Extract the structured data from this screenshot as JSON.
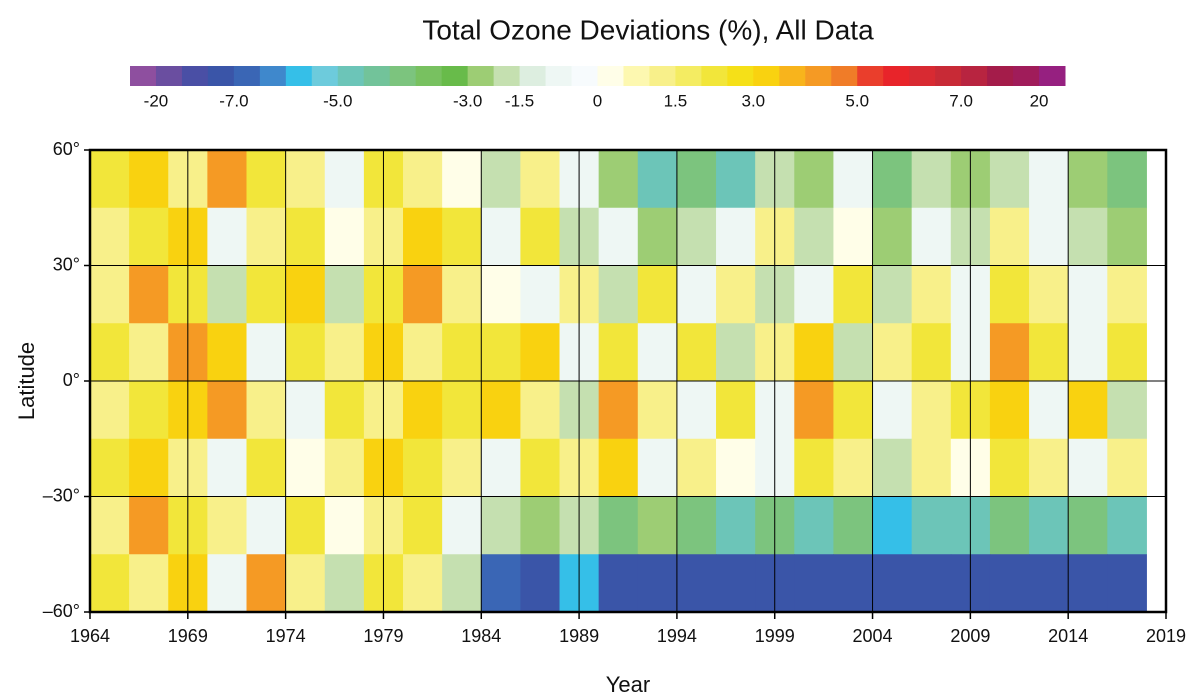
{
  "chart_data": {
    "type": "heatmap",
    "title": "Total Ozone Deviations (%), All Data",
    "x_label": "Year",
    "y_label": "Latitude",
    "x": [
      1965,
      1967,
      1969,
      1971,
      1973,
      1975,
      1977,
      1979,
      1981,
      1983,
      1985,
      1987,
      1989,
      1991,
      1993,
      1995,
      1997,
      1999,
      2001,
      2003,
      2005,
      2007,
      2009,
      2011,
      2013,
      2015,
      2017
    ],
    "y": [
      52.5,
      37.5,
      22.5,
      7.5,
      -7.5,
      -22.5,
      -37.5,
      -52.5
    ],
    "z": [
      [
        2,
        3,
        1,
        4,
        2,
        1,
        -1,
        2,
        1,
        0,
        -2,
        1,
        -1,
        -3,
        -5,
        -4,
        -5,
        -2,
        -3,
        -1,
        -4,
        -2,
        -3,
        -2,
        -1,
        -3,
        -4
      ],
      [
        1,
        2,
        3,
        -1,
        1,
        2,
        0,
        1,
        3,
        2,
        -1,
        2,
        -2,
        -1,
        -3,
        -2,
        -1,
        1,
        -2,
        0,
        -3,
        -1,
        -2,
        1,
        -1,
        -2,
        -3
      ],
      [
        1,
        4,
        2,
        -2,
        2,
        3,
        -2,
        2,
        4,
        1,
        0,
        -1,
        1,
        -2,
        2,
        -1,
        1,
        -2,
        -1,
        2,
        -2,
        1,
        -1,
        2,
        1,
        -1,
        1
      ],
      [
        2,
        1,
        4,
        3,
        -1,
        2,
        1,
        3,
        1,
        2,
        2,
        3,
        -1,
        2,
        -1,
        2,
        -2,
        1,
        3,
        -2,
        1,
        2,
        -1,
        4,
        2,
        -1,
        2
      ],
      [
        1,
        2,
        3,
        4,
        1,
        -1,
        2,
        1,
        3,
        2,
        3,
        1,
        -2,
        4,
        1,
        -1,
        2,
        -1,
        4,
        2,
        -1,
        1,
        2,
        3,
        -1,
        3,
        -2
      ],
      [
        2,
        3,
        1,
        -1,
        2,
        0,
        1,
        3,
        2,
        1,
        -1,
        2,
        1,
        3,
        -1,
        1,
        0,
        -1,
        2,
        1,
        -2,
        1,
        0,
        2,
        1,
        -1,
        1
      ],
      [
        1,
        4,
        2,
        1,
        -1,
        2,
        0,
        1,
        2,
        -1,
        -2,
        -3,
        -2,
        -4,
        -3,
        -4,
        -5,
        -4,
        -5,
        -4,
        -6,
        -5,
        -5,
        -4,
        -5,
        -4,
        -5
      ],
      [
        2,
        1,
        3,
        -1,
        4,
        1,
        -2,
        2,
        1,
        -2,
        -7,
        -8,
        -6,
        -9,
        -8,
        -9,
        -8,
        -10,
        -9,
        -8,
        -10,
        -9,
        -8,
        -9,
        -10,
        -9,
        -8
      ]
    ],
    "xlim": [
      1964,
      2019
    ],
    "xticks": [
      1964,
      1969,
      1974,
      1979,
      1984,
      1989,
      1994,
      1999,
      2004,
      2009,
      2014,
      2019
    ],
    "ylim": [
      -60,
      60
    ],
    "yticks": [
      {
        "value": -60,
        "label": "–60°"
      },
      {
        "value": -30,
        "label": "–30°"
      },
      {
        "value": 0,
        "label": "0°"
      },
      {
        "value": 30,
        "label": "30°"
      },
      {
        "value": 60,
        "label": "60°"
      }
    ],
    "grid": true,
    "colorbar": {
      "bounds": [
        -25,
        -20,
        -15,
        -10,
        -7,
        -6.5,
        -6,
        -5.5,
        -5,
        -4.6,
        -4.2,
        -3.8,
        -3.4,
        -3,
        -2.25,
        -1.5,
        -1,
        -0.5,
        0,
        0.5,
        1,
        1.5,
        2,
        2.5,
        3,
        3.5,
        4,
        4.5,
        5,
        5.5,
        6,
        6.5,
        7,
        10,
        15,
        20,
        25
      ],
      "colors": [
        "#8e4f9f",
        "#6a4ea0",
        "#4a4fa5",
        "#3a55a8",
        "#3a66b5",
        "#3f88cc",
        "#35bfe8",
        "#6dcbdc",
        "#6cc5b8",
        "#72c39a",
        "#7cc47e",
        "#78c160",
        "#68bb4a",
        "#9dcd74",
        "#c5e0b0",
        "#ddeee0",
        "#eef7f4",
        "#f7fbfd",
        "#fffee8",
        "#fdf8b0",
        "#f8f08a",
        "#f4ec62",
        "#f2e63a",
        "#f5e018",
        "#f9d210",
        "#f8b41c",
        "#f59a24",
        "#f07c28",
        "#ea3e2c",
        "#e8242a",
        "#d82a32",
        "#c82a36",
        "#b82440",
        "#a41c4a",
        "#a01c5a",
        "#962080"
      ],
      "ticks": [
        {
          "value": -20,
          "label": "-20"
        },
        {
          "value": -7,
          "label": "-7.0"
        },
        {
          "value": -5,
          "label": "-5.0"
        },
        {
          "value": -3,
          "label": "-3.0"
        },
        {
          "value": -1.5,
          "label": "-1.5"
        },
        0,
        {
          "value": 1.5,
          "label": "1.5"
        },
        {
          "value": 3,
          "label": "3.0"
        },
        {
          "value": 5,
          "label": "5.0"
        },
        {
          "value": 7,
          "label": "7.0"
        },
        20
      ]
    }
  }
}
